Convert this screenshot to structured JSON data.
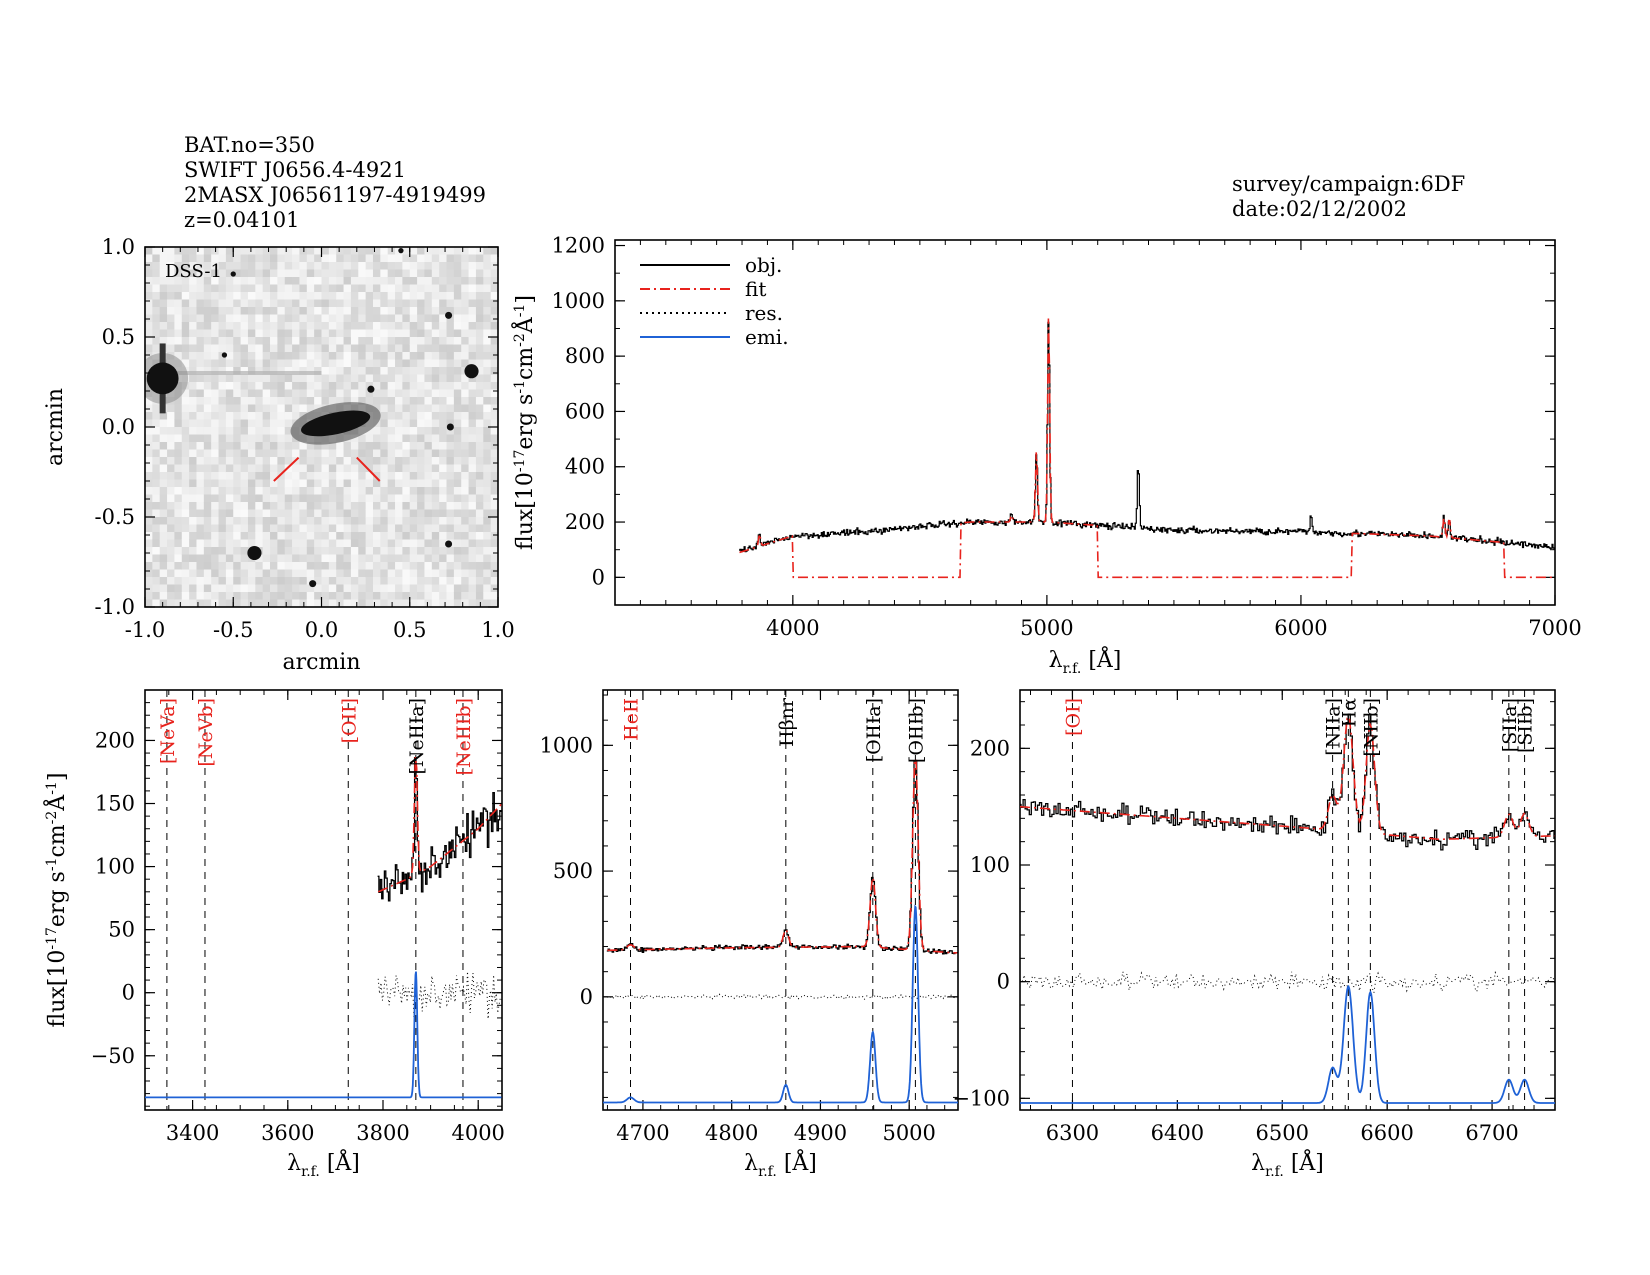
{
  "header": {
    "bat_no": "BAT.no=350",
    "swift_name": "SWIFT J0656.4-4921",
    "twomass_name": "2MASX J06561197-4919499",
    "redshift": "z=0.04101",
    "survey": "survey/campaign:6DF",
    "date": "date:02/12/2002"
  },
  "colors": {
    "obj": "#000000",
    "fit": "#e8231d",
    "res": "#000000",
    "emi": "#1f62d6",
    "dash": "#000000"
  },
  "image_panel": {
    "label": "DSS-1",
    "xlabel": "arcmin",
    "ylabel": "arcmin",
    "xlim": [
      -1.0,
      1.0
    ],
    "ylim": [
      -1.0,
      1.0
    ],
    "xticks": [
      "-1.0",
      "-0.5",
      "0.0",
      "0.5",
      "1.0"
    ],
    "yticks": [
      "1.0",
      "0.5",
      "0.0",
      "-0.5",
      "-1.0"
    ],
    "sources": [
      {
        "x": -0.9,
        "y": 0.27,
        "r": 0.09,
        "kind": "bright-star"
      },
      {
        "x": 0.85,
        "y": 0.31,
        "r": 0.04,
        "kind": "star"
      },
      {
        "x": -0.38,
        "y": -0.7,
        "r": 0.04,
        "kind": "star"
      },
      {
        "x": 0.28,
        "y": 0.21,
        "r": 0.02,
        "kind": "star"
      },
      {
        "x": 0.72,
        "y": -0.65,
        "r": 0.02,
        "kind": "star"
      },
      {
        "x": -0.05,
        "y": -0.87,
        "r": 0.02,
        "kind": "star"
      },
      {
        "x": 0.72,
        "y": 0.62,
        "r": 0.02,
        "kind": "star"
      },
      {
        "x": 0.73,
        "y": 0.0,
        "r": 0.02,
        "kind": "star"
      },
      {
        "x": -0.5,
        "y": 0.85,
        "r": 0.015,
        "kind": "star"
      },
      {
        "x": 0.45,
        "y": 0.98,
        "r": 0.015,
        "kind": "star"
      },
      {
        "x": -0.55,
        "y": 0.4,
        "r": 0.015,
        "kind": "star"
      }
    ],
    "galaxy": {
      "x": 0.08,
      "y": 0.02,
      "a": 0.2,
      "b": 0.06,
      "angle_deg": 12
    }
  },
  "chart_data": [
    {
      "type": "line",
      "panel": "full-spectrum",
      "xlabel": "λr.f. [Å]",
      "ylabel": "flux[10-17erg s-1cm-2Å-1]",
      "xlim": [
        3300,
        7000
      ],
      "ylim": [
        -100,
        1220
      ],
      "xticks": [
        4000,
        5000,
        6000,
        7000
      ],
      "yticks": [
        0,
        200,
        400,
        600,
        800,
        1000,
        1200
      ],
      "legend": [
        "obj.",
        "fit",
        "res.",
        "emi."
      ],
      "legend_position": "top-left",
      "continuum": [
        [
          3790,
          90
        ],
        [
          4000,
          150
        ],
        [
          4300,
          165
        ],
        [
          4500,
          185
        ],
        [
          4700,
          200
        ],
        [
          5000,
          200
        ],
        [
          5500,
          170
        ],
        [
          6000,
          165
        ],
        [
          6500,
          150
        ],
        [
          7000,
          110
        ]
      ],
      "fit_windows": [
        [
          3790,
          4000
        ],
        [
          4660,
          5200
        ],
        [
          6200,
          6800
        ]
      ],
      "lines": [
        {
          "x": 3869,
          "h": 45
        },
        {
          "x": 4861,
          "h": 25
        },
        {
          "x": 4959,
          "h": 260
        },
        {
          "x": 5007,
          "h": 760
        },
        {
          "x": 5360,
          "h": 230
        },
        {
          "x": 6040,
          "h": 60
        },
        {
          "x": 6563,
          "h": 70
        },
        {
          "x": 6584,
          "h": 70
        }
      ]
    },
    {
      "type": "line",
      "panel": "neon-region",
      "xlabel": "λr.f. [Å]",
      "ylabel": "flux[10-17erg s-1cm-2Å-1]",
      "xlim": [
        3300,
        4050
      ],
      "ylim": [
        -93,
        240
      ],
      "xticks": [
        3400,
        3600,
        3800,
        4000
      ],
      "yticks": [
        -50,
        0,
        50,
        100,
        150,
        200
      ],
      "markers": [
        {
          "x": 3346,
          "label": "[NeVa]",
          "color": "red"
        },
        {
          "x": 3426,
          "label": "[NeVb]",
          "color": "red"
        },
        {
          "x": 3727,
          "label": "[OII]",
          "color": "red"
        },
        {
          "x": 3869,
          "label": "[NeIIIa]",
          "color": "black"
        },
        {
          "x": 3968,
          "label": "[NeIIIb]",
          "color": "red"
        }
      ],
      "continuum": [
        [
          3790,
          80
        ],
        [
          3850,
          90
        ],
        [
          3900,
          100
        ],
        [
          3950,
          115
        ],
        [
          4000,
          130
        ],
        [
          4050,
          150
        ]
      ],
      "fit": [
        [
          3795,
          0
        ],
        [
          3800,
          75
        ],
        [
          3900,
          95
        ],
        [
          4000,
          115
        ]
      ],
      "emission": [
        {
          "x": 3869,
          "amp": 100,
          "sigma": 3
        }
      ],
      "baseline": -83
    },
    {
      "type": "line",
      "panel": "hbeta-oiii-region",
      "xlabel": "λr.f. [Å]",
      "xlim": [
        4655,
        5055
      ],
      "ylim": [
        -450,
        1220
      ],
      "xticks": [
        4700,
        4800,
        4900,
        5000
      ],
      "yticks": [
        0,
        500,
        1000
      ],
      "markers": [
        {
          "x": 4686,
          "label": "HeII",
          "color": "red"
        },
        {
          "x": 4861,
          "label": "Hβnr",
          "color": "black"
        },
        {
          "x": 4959,
          "label": "[OIIIa]",
          "color": "black"
        },
        {
          "x": 5007,
          "label": "[OIIIb]",
          "color": "black"
        }
      ],
      "continuum": [
        [
          4660,
          185
        ],
        [
          4800,
          195
        ],
        [
          4950,
          200
        ],
        [
          5050,
          175
        ]
      ],
      "emission": [
        {
          "x": 4686,
          "amp": 20,
          "sigma": 4
        },
        {
          "x": 4861,
          "amp": 70,
          "sigma": 3
        },
        {
          "x": 4959,
          "amp": 280,
          "sigma": 3
        },
        {
          "x": 5007,
          "amp": 780,
          "sigma": 3
        }
      ],
      "baseline": -420
    },
    {
      "type": "line",
      "panel": "halpha-region",
      "xlabel": "λr.f. [Å]",
      "xlim": [
        6250,
        6760
      ],
      "ylim": [
        -110,
        250
      ],
      "xticks": [
        6300,
        6400,
        6500,
        6600,
        6700
      ],
      "yticks": [
        -100,
        0,
        100,
        200
      ],
      "markers": [
        {
          "x": 6300,
          "label": "[OI]",
          "color": "red"
        },
        {
          "x": 6548,
          "label": "[NIIa]",
          "color": "black"
        },
        {
          "x": 6563,
          "label": "Hα",
          "color": "black"
        },
        {
          "x": 6584,
          "label": "[NIIb]",
          "color": "black"
        },
        {
          "x": 6716,
          "label": "[SIIa]",
          "color": "black"
        },
        {
          "x": 6731,
          "label": "[SIIb]",
          "color": "black"
        }
      ],
      "continuum": [
        [
          6250,
          150
        ],
        [
          6400,
          140
        ],
        [
          6520,
          132
        ],
        [
          6650,
          122
        ],
        [
          6760,
          125
        ]
      ],
      "emission": [
        {
          "x": 6548,
          "amp": 30,
          "sigma": 4
        },
        {
          "x": 6563,
          "amp": 100,
          "sigma": 4.5
        },
        {
          "x": 6584,
          "amp": 95,
          "sigma": 4
        },
        {
          "x": 6716,
          "amp": 20,
          "sigma": 4
        },
        {
          "x": 6731,
          "amp": 20,
          "sigma": 4
        }
      ],
      "baseline": -104
    }
  ]
}
